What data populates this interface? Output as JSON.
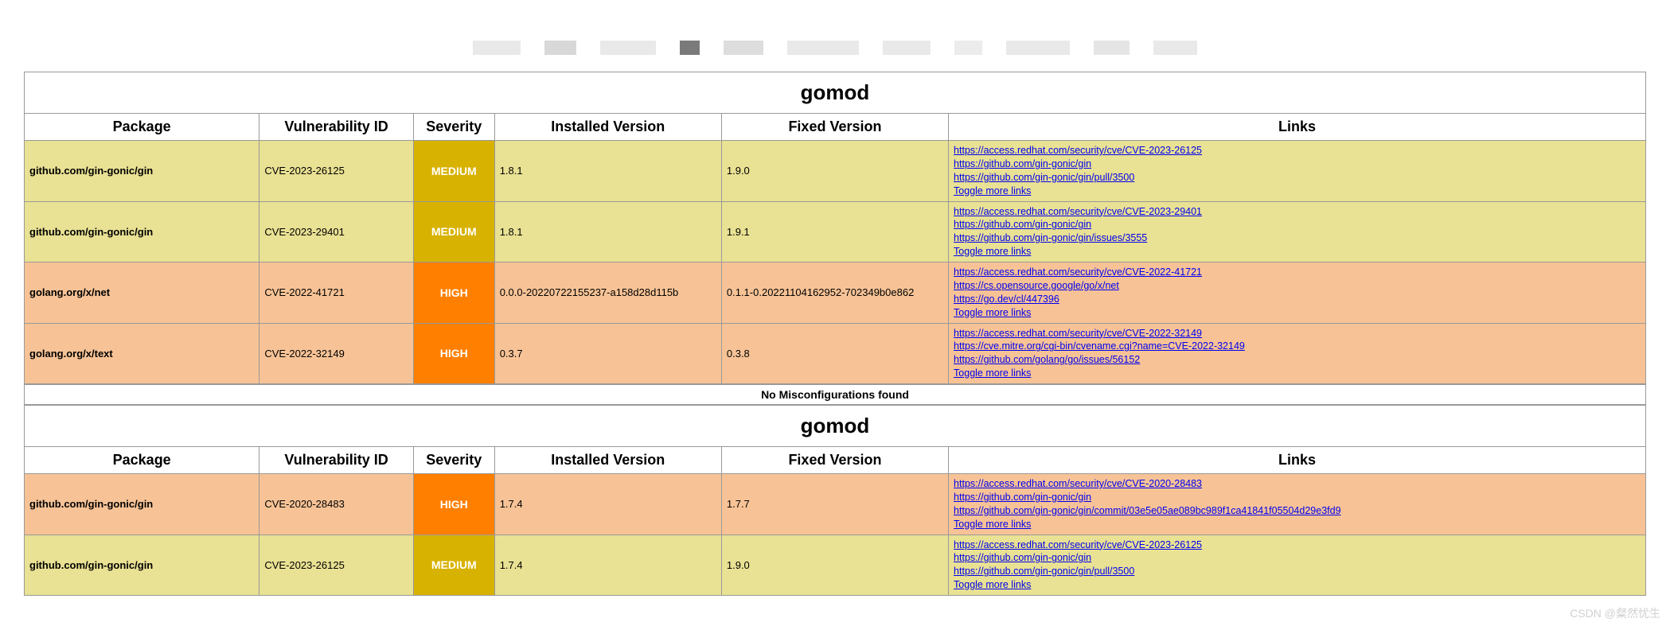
{
  "watermark": "CSDN @粲然忧生",
  "misconfig_msg": "No Misconfigurations found",
  "toggle_label": "Toggle more links",
  "section1": {
    "title": "gomod",
    "headers": [
      "Package",
      "Vulnerability ID",
      "Severity",
      "Installed Version",
      "Fixed Version",
      "Links"
    ],
    "row0": {
      "package": "github.com/gin-gonic/gin",
      "vuln_id": "CVE-2023-26125",
      "severity": "MEDIUM",
      "severity_class": "row-medium",
      "installed": "1.8.1",
      "fixed": "1.9.0",
      "link0": "https://access.redhat.com/security/cve/CVE-2023-26125",
      "link1": "https://github.com/gin-gonic/gin",
      "link2": "https://github.com/gin-gonic/gin/pull/3500"
    },
    "row1": {
      "package": "github.com/gin-gonic/gin",
      "vuln_id": "CVE-2023-29401",
      "severity": "MEDIUM",
      "severity_class": "row-medium",
      "installed": "1.8.1",
      "fixed": "1.9.1",
      "link0": "https://access.redhat.com/security/cve/CVE-2023-29401",
      "link1": "https://github.com/gin-gonic/gin",
      "link2": "https://github.com/gin-gonic/gin/issues/3555"
    },
    "row2": {
      "package": "golang.org/x/net",
      "vuln_id": "CVE-2022-41721",
      "severity": "HIGH",
      "severity_class": "row-high",
      "installed": "0.0.0-20220722155237-a158d28d115b",
      "fixed": "0.1.1-0.20221104162952-702349b0e862",
      "link0": "https://access.redhat.com/security/cve/CVE-2022-41721",
      "link1": "https://cs.opensource.google/go/x/net",
      "link2": "https://go.dev/cl/447396"
    },
    "row3": {
      "package": "golang.org/x/text",
      "vuln_id": "CVE-2022-32149",
      "severity": "HIGH",
      "severity_class": "row-high",
      "installed": "0.3.7",
      "fixed": "0.3.8",
      "link0": "https://access.redhat.com/security/cve/CVE-2022-32149",
      "link1": "https://cve.mitre.org/cgi-bin/cvename.cgi?name=CVE-2022-32149",
      "link2": "https://github.com/golang/go/issues/56152"
    }
  },
  "section2": {
    "title": "gomod",
    "headers": [
      "Package",
      "Vulnerability ID",
      "Severity",
      "Installed Version",
      "Fixed Version",
      "Links"
    ],
    "row0": {
      "package": "github.com/gin-gonic/gin",
      "vuln_id": "CVE-2020-28483",
      "severity": "HIGH",
      "severity_class": "row-high",
      "installed": "1.7.4",
      "fixed": "1.7.7",
      "link0": "https://access.redhat.com/security/cve/CVE-2020-28483",
      "link1": "https://github.com/gin-gonic/gin",
      "link2": "https://github.com/gin-gonic/gin/commit/03e5e05ae089bc989f1ca41841f05504d29e3fd9"
    },
    "row1": {
      "package": "github.com/gin-gonic/gin",
      "vuln_id": "CVE-2023-26125",
      "severity": "MEDIUM",
      "severity_class": "row-medium",
      "installed": "1.7.4",
      "fixed": "1.9.0",
      "link0": "https://access.redhat.com/security/cve/CVE-2023-26125",
      "link1": "https://github.com/gin-gonic/gin",
      "link2": "https://github.com/gin-gonic/gin/pull/3500"
    }
  },
  "colors": {
    "medium_row_bg": "#e9e193",
    "medium_sev_bg": "#d8b200",
    "high_row_bg": "#f7c396",
    "high_sev_bg": "#ff7f00",
    "link_color": "#0000ee",
    "border_color": "#999999"
  }
}
